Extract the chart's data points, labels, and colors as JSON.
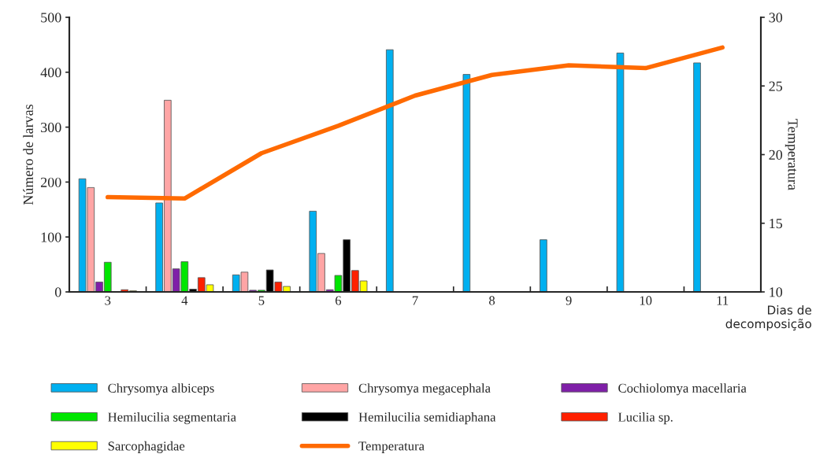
{
  "chart_data": {
    "type": "bar",
    "categories": [
      "3",
      "4",
      "5",
      "6",
      "7",
      "8",
      "9",
      "10",
      "11"
    ],
    "xlabel": "Dias de decomposição",
    "ylabel": "Número de larvas",
    "y2label": "Temperatura",
    "ylim": [
      0,
      500
    ],
    "yticks": [
      0,
      100,
      200,
      300,
      400,
      500
    ],
    "y2lim": [
      10,
      30
    ],
    "y2ticks": [
      10,
      15,
      20,
      25,
      30
    ],
    "grid": false,
    "legend": "bottom",
    "series": [
      {
        "name": "Chrysomya albiceps",
        "color": "#00b0f0",
        "values": [
          206,
          162,
          31,
          147,
          441,
          396,
          95,
          435,
          417
        ]
      },
      {
        "name": "Chrysomya megacephala",
        "color": "#ffa5a5",
        "values": [
          190,
          349,
          36,
          70,
          null,
          null,
          null,
          null,
          null
        ]
      },
      {
        "name": "Cochiolomya macellaria",
        "color": "#7f1fa8",
        "values": [
          18,
          42,
          3,
          4,
          null,
          null,
          null,
          null,
          null
        ]
      },
      {
        "name": "Hemilucilia segmentaria",
        "color": "#00e600",
        "values": [
          54,
          55,
          3,
          30,
          null,
          null,
          null,
          null,
          null
        ]
      },
      {
        "name": "Hemilucilia semidiaphana",
        "color": "#000000",
        "values": [
          null,
          5,
          40,
          95,
          null,
          null,
          null,
          null,
          null
        ]
      },
      {
        "name": "Lucilia sp.",
        "color": "#ff2000",
        "values": [
          4,
          26,
          18,
          39,
          null,
          null,
          null,
          null,
          null
        ]
      },
      {
        "name": "Sarcophagidae",
        "color": "#ffff00",
        "values": [
          2,
          13,
          10,
          20,
          null,
          null,
          null,
          null,
          null
        ]
      },
      {
        "name": "Temperatura",
        "type": "line",
        "axis": "y2",
        "color": "#ff6a00",
        "values": [
          16.9,
          16.8,
          20.1,
          22.1,
          24.3,
          25.8,
          26.5,
          26.3,
          27.8
        ]
      }
    ]
  }
}
